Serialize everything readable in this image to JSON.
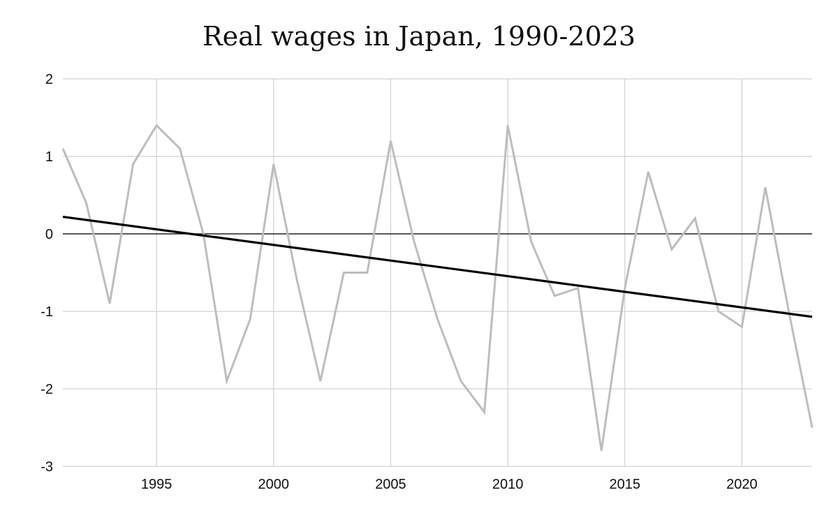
{
  "chart_data": {
    "type": "line",
    "title": "Real wages in Japan, 1990-2023",
    "xlabel": "",
    "ylabel": "",
    "xlim": [
      1991,
      2023
    ],
    "ylim": [
      -3,
      2
    ],
    "x_ticks": [
      1995,
      2000,
      2005,
      2010,
      2015,
      2020
    ],
    "y_ticks": [
      2,
      1,
      0,
      -1,
      -2,
      -3
    ],
    "grid": true,
    "legend": "none",
    "series": [
      {
        "color": "#bdbdbd",
        "x": [
          1991,
          1992,
          1993,
          1994,
          1995,
          1996,
          1997,
          1998,
          1999,
          2000,
          2001,
          2002,
          2003,
          2004,
          2005,
          2006,
          2007,
          2008,
          2009,
          2010,
          2011,
          2012,
          2013,
          2014,
          2015,
          2016,
          2017,
          2018,
          2019,
          2020,
          2021,
          2022,
          2023
        ],
        "y": [
          1.1,
          0.4,
          -0.9,
          0.9,
          1.4,
          1.1,
          0.0,
          -1.9,
          -1.1,
          0.9,
          -0.6,
          -1.9,
          -0.5,
          -0.5,
          1.2,
          -0.1,
          -1.1,
          -1.9,
          -2.3,
          1.4,
          -0.1,
          -0.8,
          -0.7,
          -2.8,
          -0.7,
          0.8,
          -0.2,
          0.2,
          -1.0,
          -1.2,
          0.6,
          -1.0,
          -2.5
        ]
      },
      {
        "color": "#000000",
        "x": [
          1991,
          2023
        ],
        "y": [
          0.22,
          -1.07
        ]
      }
    ],
    "zero_line_color": "#222222",
    "grid_color": "#d0d0d0"
  }
}
